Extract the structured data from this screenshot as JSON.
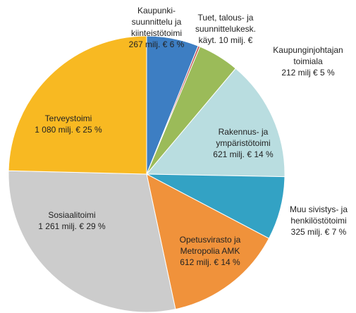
{
  "chart_data": {
    "type": "pie",
    "categories": [
      [
        "Kaupunki-",
        "suunnittelu ja",
        "kiinteistötoimi"
      ],
      [
        "Tuet, talous- ja",
        "suunnittelukesk.",
        "käyt."
      ],
      [
        "Kaupunginjohtajan",
        "toimiala"
      ],
      [
        "Rakennus- ja",
        "ympäristötoimi"
      ],
      [
        "Muu sivistys- ja",
        "henkilöstötoimi"
      ],
      [
        "Opetusvirasto ja",
        "Metropolia AMK"
      ],
      [
        "Sosiaalitoimi"
      ],
      [
        "Terveystoimi"
      ]
    ],
    "values": [
      267,
      10,
      212,
      621,
      325,
      612,
      1261,
      1080
    ],
    "value_labels": [
      "267 milj. € 6  %",
      "10 milj. €",
      "212 milj € 5 %",
      "621 milj. € 14 %",
      "325 milj. € 7 %",
      "612 milj. € 14 %",
      "1 261 milj. € 29 %",
      "1 080 milj. € 25 %"
    ],
    "colors": [
      "#3d7ec3",
      "#c0504d",
      "#9bbb59",
      "#b9dde0",
      "#33a2c4",
      "#f0923b",
      "#cccccc",
      "#f8b922"
    ]
  }
}
